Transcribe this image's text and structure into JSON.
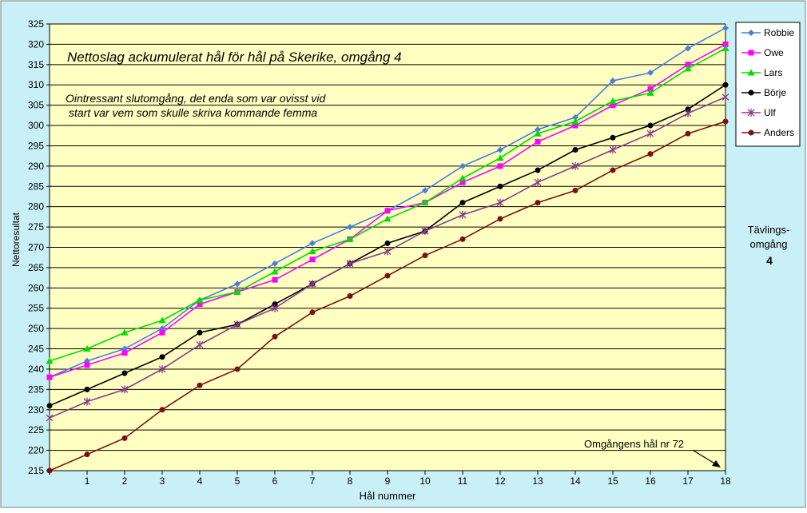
{
  "chart_data": {
    "type": "line",
    "title": "Nettoslag ackumulerat hål för hål på Skerike, omgång 4",
    "subtitle_lines": [
      "Ointressant slutomgång, det enda som var ovisst vid",
      "start var vem som skulle skriva kommande femma"
    ],
    "xlabel": "Hål nummer",
    "ylabel": "Nettoresultat",
    "x": [
      0,
      1,
      2,
      3,
      4,
      5,
      6,
      7,
      8,
      9,
      10,
      11,
      12,
      13,
      14,
      15,
      16,
      17,
      18
    ],
    "x_tick_labels": [
      "",
      "1",
      "2",
      "3",
      "4",
      "5",
      "6",
      "7",
      "8",
      "9",
      "10",
      "11",
      "12",
      "13",
      "14",
      "15",
      "16",
      "17",
      "18"
    ],
    "ylim": [
      215,
      325
    ],
    "y_ticks": [
      215,
      220,
      225,
      230,
      235,
      240,
      245,
      250,
      255,
      260,
      265,
      270,
      275,
      280,
      285,
      290,
      295,
      300,
      305,
      310,
      315,
      320,
      325
    ],
    "grid": true,
    "legend_position": "right",
    "series": [
      {
        "name": "Robbie",
        "color": "#4a7ee0",
        "marker": "diamond",
        "values": [
          238,
          242,
          245,
          250,
          257,
          261,
          266,
          271,
          275,
          279,
          284,
          290,
          294,
          299,
          302,
          311,
          313,
          319,
          324
        ]
      },
      {
        "name": "Owe",
        "color": "#ff00ff",
        "marker": "square",
        "values": [
          238,
          241,
          244,
          249,
          256,
          259,
          262,
          267,
          272,
          279,
          281,
          286,
          290,
          296,
          300,
          305,
          309,
          315,
          320
        ]
      },
      {
        "name": "Lars",
        "color": "#00dd00",
        "marker": "triangle",
        "values": [
          242,
          245,
          249,
          252,
          257,
          259,
          264,
          269,
          272,
          277,
          281,
          287,
          292,
          298,
          301,
          306,
          308,
          314,
          319
        ]
      },
      {
        "name": "Börje",
        "color": "#000000",
        "marker": "circle",
        "values": [
          231,
          235,
          239,
          243,
          249,
          251,
          256,
          261,
          266,
          271,
          274,
          281,
          285,
          289,
          294,
          297,
          300,
          304,
          310
        ]
      },
      {
        "name": "Ulf",
        "color": "#8b3a8b",
        "marker": "star",
        "values": [
          228,
          232,
          235,
          240,
          246,
          251,
          255,
          261,
          266,
          269,
          274,
          278,
          281,
          286,
          290,
          294,
          298,
          303,
          307
        ]
      },
      {
        "name": "Anders",
        "color": "#7b1010",
        "marker": "circle",
        "values": [
          215,
          219,
          223,
          230,
          236,
          240,
          248,
          254,
          258,
          263,
          268,
          272,
          277,
          281,
          284,
          289,
          293,
          298,
          301
        ]
      }
    ],
    "annotation": "Omgångens hål nr 72",
    "side_label_lines": [
      "Tävlings-",
      "omgång"
    ],
    "side_label_number": "4"
  },
  "colors": {
    "page_background": "#c9f0f7",
    "plot_background": "#ffffc2",
    "grid": "#000000"
  }
}
